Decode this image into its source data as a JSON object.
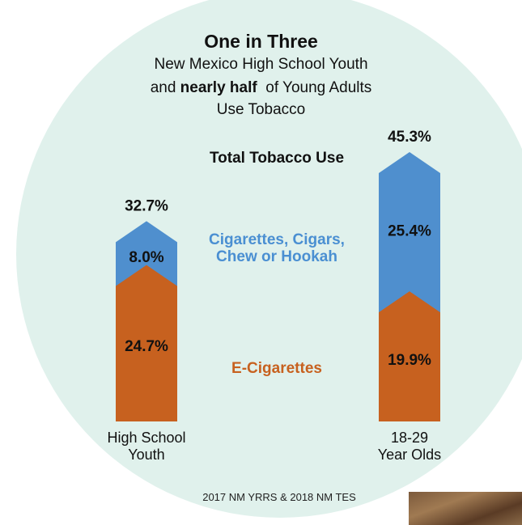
{
  "header": {
    "title": "One in Three",
    "subtitle_line1": "New Mexico High School Youth",
    "subtitle_line2_pre": "and ",
    "subtitle_line2_bold": "nearly half",
    "subtitle_line2_post": "  of Young Adults",
    "subtitle_line3": "Use Tobacco"
  },
  "source": "2017 NM YRRS & 2018 NM TES",
  "colors": {
    "background_circle": "#e0f1ec",
    "e_cigarettes": "#c7611f",
    "other_tobacco": "#4f8fce",
    "legend_blue_text": "#4a8fd2",
    "legend_orange_text": "#c7611f"
  },
  "chart_data": {
    "type": "bar",
    "stacked": true,
    "categories": [
      "High School Youth",
      "18-29 Year Olds"
    ],
    "category_lines": [
      [
        "High School",
        "Youth"
      ],
      [
        "18-29",
        "Year Olds"
      ]
    ],
    "series": [
      {
        "name": "E-Cigarettes",
        "values": [
          24.7,
          19.9
        ],
        "labels": [
          "24.7%",
          "19.9%"
        ]
      },
      {
        "name": "Cigarettes, Cigars, Chew or Hookah",
        "name_lines": [
          "Cigarettes, Cigars,",
          "Chew or Hookah"
        ],
        "values": [
          8.0,
          25.4
        ],
        "labels": [
          "8.0%",
          "25.4%"
        ]
      }
    ],
    "totals": {
      "name": "Total Tobacco Use",
      "values": [
        32.7,
        45.3
      ],
      "labels": [
        "32.7%",
        "45.3%"
      ]
    },
    "ylim": [
      0,
      45.3
    ]
  }
}
